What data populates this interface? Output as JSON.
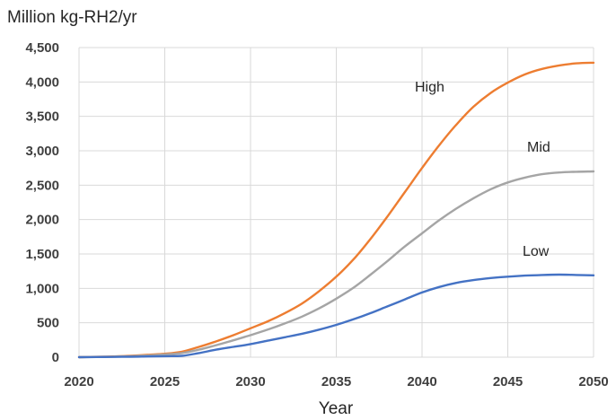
{
  "chart_data": {
    "type": "line",
    "ylabel": "Million kg-RH2/yr",
    "xlabel": "Year",
    "xlim": [
      2020,
      2050
    ],
    "ylim": [
      0,
      4500
    ],
    "x_ticks": [
      "2020",
      "2025",
      "2030",
      "2035",
      "2040",
      "2045",
      "2050"
    ],
    "y_ticks": [
      "0",
      "500",
      "1,000",
      "1,500",
      "2,000",
      "2,500",
      "3,000",
      "3,500",
      "4,000",
      "4,500"
    ],
    "grid": true,
    "legend": "none (series labeled directly on lines)",
    "x": [
      2020,
      2021,
      2022,
      2023,
      2024,
      2025,
      2026,
      2027,
      2028,
      2029,
      2030,
      2031,
      2032,
      2033,
      2034,
      2035,
      2036,
      2037,
      2038,
      2039,
      2040,
      2041,
      2042,
      2043,
      2044,
      2045,
      2046,
      2047,
      2048,
      2049,
      2050
    ],
    "series": [
      {
        "name": "High",
        "color": "#ED7D31",
        "values": [
          0,
          5,
          10,
          20,
          35,
          50,
          80,
          150,
          230,
          320,
          420,
          520,
          640,
          780,
          960,
          1170,
          1420,
          1720,
          2050,
          2400,
          2750,
          3080,
          3380,
          3640,
          3840,
          3990,
          4110,
          4190,
          4240,
          4270,
          4280
        ]
      },
      {
        "name": "Mid",
        "color": "#A5A5A5",
        "values": [
          0,
          4,
          8,
          15,
          25,
          40,
          60,
          110,
          175,
          245,
          320,
          400,
          490,
          590,
          710,
          850,
          1010,
          1200,
          1400,
          1610,
          1800,
          1990,
          2160,
          2310,
          2440,
          2540,
          2610,
          2660,
          2685,
          2695,
          2700
        ]
      },
      {
        "name": "Low",
        "color": "#4472C4",
        "values": [
          0,
          2,
          4,
          6,
          10,
          15,
          20,
          60,
          110,
          150,
          190,
          240,
          290,
          340,
          400,
          470,
          550,
          640,
          740,
          840,
          940,
          1020,
          1080,
          1120,
          1150,
          1170,
          1185,
          1195,
          1200,
          1195,
          1190
        ]
      }
    ]
  }
}
